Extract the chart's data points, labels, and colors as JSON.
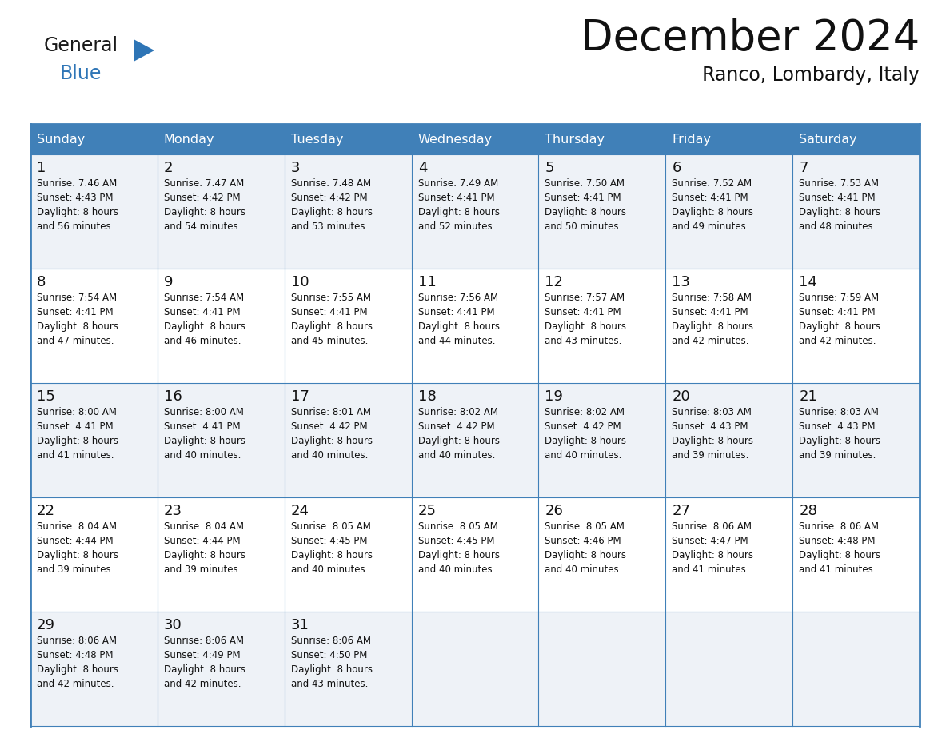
{
  "title": "December 2024",
  "subtitle": "Ranco, Lombardy, Italy",
  "header_bg": "#4080b8",
  "header_text_color": "#ffffff",
  "row_bg_odd": "#eef2f7",
  "row_bg_even": "#ffffff",
  "border_color": "#4080b8",
  "day_headers": [
    "Sunday",
    "Monday",
    "Tuesday",
    "Wednesday",
    "Thursday",
    "Friday",
    "Saturday"
  ],
  "days": [
    {
      "day": 1,
      "col": 0,
      "row": 0,
      "sunrise": "7:46 AM",
      "sunset": "4:43 PM",
      "daylight_hours": "8 hours",
      "daylight_min": "and 56 minutes."
    },
    {
      "day": 2,
      "col": 1,
      "row": 0,
      "sunrise": "7:47 AM",
      "sunset": "4:42 PM",
      "daylight_hours": "8 hours",
      "daylight_min": "and 54 minutes."
    },
    {
      "day": 3,
      "col": 2,
      "row": 0,
      "sunrise": "7:48 AM",
      "sunset": "4:42 PM",
      "daylight_hours": "8 hours",
      "daylight_min": "and 53 minutes."
    },
    {
      "day": 4,
      "col": 3,
      "row": 0,
      "sunrise": "7:49 AM",
      "sunset": "4:41 PM",
      "daylight_hours": "8 hours",
      "daylight_min": "and 52 minutes."
    },
    {
      "day": 5,
      "col": 4,
      "row": 0,
      "sunrise": "7:50 AM",
      "sunset": "4:41 PM",
      "daylight_hours": "8 hours",
      "daylight_min": "and 50 minutes."
    },
    {
      "day": 6,
      "col": 5,
      "row": 0,
      "sunrise": "7:52 AM",
      "sunset": "4:41 PM",
      "daylight_hours": "8 hours",
      "daylight_min": "and 49 minutes."
    },
    {
      "day": 7,
      "col": 6,
      "row": 0,
      "sunrise": "7:53 AM",
      "sunset": "4:41 PM",
      "daylight_hours": "8 hours",
      "daylight_min": "and 48 minutes."
    },
    {
      "day": 8,
      "col": 0,
      "row": 1,
      "sunrise": "7:54 AM",
      "sunset": "4:41 PM",
      "daylight_hours": "8 hours",
      "daylight_min": "and 47 minutes."
    },
    {
      "day": 9,
      "col": 1,
      "row": 1,
      "sunrise": "7:54 AM",
      "sunset": "4:41 PM",
      "daylight_hours": "8 hours",
      "daylight_min": "and 46 minutes."
    },
    {
      "day": 10,
      "col": 2,
      "row": 1,
      "sunrise": "7:55 AM",
      "sunset": "4:41 PM",
      "daylight_hours": "8 hours",
      "daylight_min": "and 45 minutes."
    },
    {
      "day": 11,
      "col": 3,
      "row": 1,
      "sunrise": "7:56 AM",
      "sunset": "4:41 PM",
      "daylight_hours": "8 hours",
      "daylight_min": "and 44 minutes."
    },
    {
      "day": 12,
      "col": 4,
      "row": 1,
      "sunrise": "7:57 AM",
      "sunset": "4:41 PM",
      "daylight_hours": "8 hours",
      "daylight_min": "and 43 minutes."
    },
    {
      "day": 13,
      "col": 5,
      "row": 1,
      "sunrise": "7:58 AM",
      "sunset": "4:41 PM",
      "daylight_hours": "8 hours",
      "daylight_min": "and 42 minutes."
    },
    {
      "day": 14,
      "col": 6,
      "row": 1,
      "sunrise": "7:59 AM",
      "sunset": "4:41 PM",
      "daylight_hours": "8 hours",
      "daylight_min": "and 42 minutes."
    },
    {
      "day": 15,
      "col": 0,
      "row": 2,
      "sunrise": "8:00 AM",
      "sunset": "4:41 PM",
      "daylight_hours": "8 hours",
      "daylight_min": "and 41 minutes."
    },
    {
      "day": 16,
      "col": 1,
      "row": 2,
      "sunrise": "8:00 AM",
      "sunset": "4:41 PM",
      "daylight_hours": "8 hours",
      "daylight_min": "and 40 minutes."
    },
    {
      "day": 17,
      "col": 2,
      "row": 2,
      "sunrise": "8:01 AM",
      "sunset": "4:42 PM",
      "daylight_hours": "8 hours",
      "daylight_min": "and 40 minutes."
    },
    {
      "day": 18,
      "col": 3,
      "row": 2,
      "sunrise": "8:02 AM",
      "sunset": "4:42 PM",
      "daylight_hours": "8 hours",
      "daylight_min": "and 40 minutes."
    },
    {
      "day": 19,
      "col": 4,
      "row": 2,
      "sunrise": "8:02 AM",
      "sunset": "4:42 PM",
      "daylight_hours": "8 hours",
      "daylight_min": "and 40 minutes."
    },
    {
      "day": 20,
      "col": 5,
      "row": 2,
      "sunrise": "8:03 AM",
      "sunset": "4:43 PM",
      "daylight_hours": "8 hours",
      "daylight_min": "and 39 minutes."
    },
    {
      "day": 21,
      "col": 6,
      "row": 2,
      "sunrise": "8:03 AM",
      "sunset": "4:43 PM",
      "daylight_hours": "8 hours",
      "daylight_min": "and 39 minutes."
    },
    {
      "day": 22,
      "col": 0,
      "row": 3,
      "sunrise": "8:04 AM",
      "sunset": "4:44 PM",
      "daylight_hours": "8 hours",
      "daylight_min": "and 39 minutes."
    },
    {
      "day": 23,
      "col": 1,
      "row": 3,
      "sunrise": "8:04 AM",
      "sunset": "4:44 PM",
      "daylight_hours": "8 hours",
      "daylight_min": "and 39 minutes."
    },
    {
      "day": 24,
      "col": 2,
      "row": 3,
      "sunrise": "8:05 AM",
      "sunset": "4:45 PM",
      "daylight_hours": "8 hours",
      "daylight_min": "and 40 minutes."
    },
    {
      "day": 25,
      "col": 3,
      "row": 3,
      "sunrise": "8:05 AM",
      "sunset": "4:45 PM",
      "daylight_hours": "8 hours",
      "daylight_min": "and 40 minutes."
    },
    {
      "day": 26,
      "col": 4,
      "row": 3,
      "sunrise": "8:05 AM",
      "sunset": "4:46 PM",
      "daylight_hours": "8 hours",
      "daylight_min": "and 40 minutes."
    },
    {
      "day": 27,
      "col": 5,
      "row": 3,
      "sunrise": "8:06 AM",
      "sunset": "4:47 PM",
      "daylight_hours": "8 hours",
      "daylight_min": "and 41 minutes."
    },
    {
      "day": 28,
      "col": 6,
      "row": 3,
      "sunrise": "8:06 AM",
      "sunset": "4:48 PM",
      "daylight_hours": "8 hours",
      "daylight_min": "and 41 minutes."
    },
    {
      "day": 29,
      "col": 0,
      "row": 4,
      "sunrise": "8:06 AM",
      "sunset": "4:48 PM",
      "daylight_hours": "8 hours",
      "daylight_min": "and 42 minutes."
    },
    {
      "day": 30,
      "col": 1,
      "row": 4,
      "sunrise": "8:06 AM",
      "sunset": "4:49 PM",
      "daylight_hours": "8 hours",
      "daylight_min": "and 42 minutes."
    },
    {
      "day": 31,
      "col": 2,
      "row": 4,
      "sunrise": "8:06 AM",
      "sunset": "4:50 PM",
      "daylight_hours": "8 hours",
      "daylight_min": "and 43 minutes."
    }
  ],
  "n_rows": 5,
  "n_cols": 7,
  "logo_general_color": "#1a1a1a",
  "logo_blue_color": "#2e75b6",
  "logo_triangle_color": "#2e75b6"
}
